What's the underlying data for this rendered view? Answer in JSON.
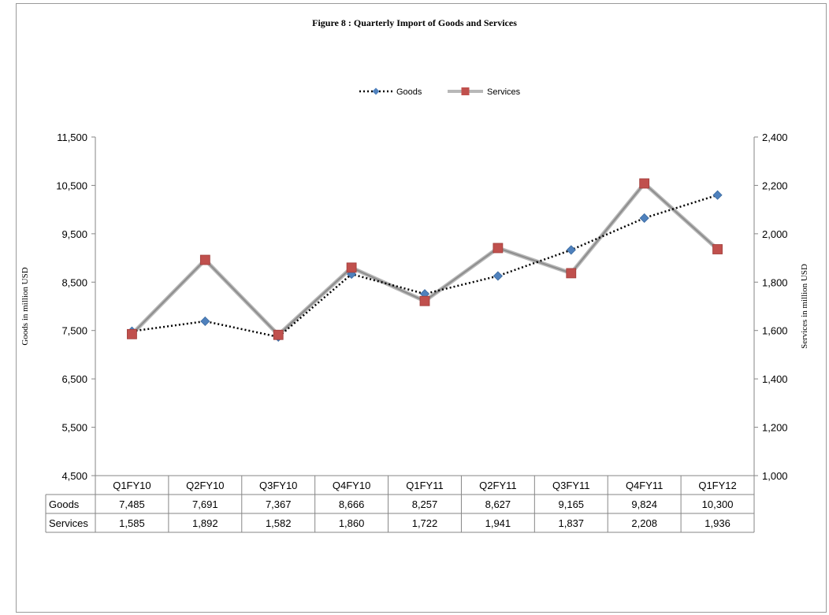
{
  "chart_data": {
    "type": "line",
    "title": "Figure  8 : Quarterly Import of Goods and Services",
    "categories": [
      "Q1FY10",
      "Q2FY10",
      "Q3FY10",
      "Q4FY10",
      "Q1FY11",
      "Q2FY11",
      "Q3FY11",
      "Q4FY11",
      "Q1FY12"
    ],
    "series": [
      {
        "name": "Goods",
        "axis": "left",
        "values": [
          7485,
          7691,
          7367,
          8666,
          8257,
          8627,
          9165,
          9824,
          10300
        ],
        "color": "#4f81bd",
        "marker": "diamond",
        "line": "dotted"
      },
      {
        "name": "Services",
        "axis": "right",
        "values": [
          1585,
          1892,
          1582,
          1860,
          1722,
          1941,
          1837,
          2208,
          1936
        ],
        "color": "#c0504d",
        "marker": "square",
        "line": "gray-gradient"
      }
    ],
    "y_left": {
      "label": "Goods in million USD",
      "min": 4500,
      "max": 11500,
      "ticks": [
        "4,500",
        "5,500",
        "6,500",
        "7,500",
        "8,500",
        "9,500",
        "10,500",
        "11,500"
      ]
    },
    "y_right": {
      "label": "Services in million  USD",
      "min": 1000,
      "max": 2400,
      "ticks": [
        "1,000",
        "1,200",
        "1,400",
        "1,600",
        "1,800",
        "2,000",
        "2,200",
        "2,400"
      ]
    },
    "legend_position": "top",
    "grid": false,
    "data_table": {
      "rows": [
        {
          "label": "Goods",
          "cells": [
            "7,485",
            "7,691",
            "7,367",
            "8,666",
            "8,257",
            "8,627",
            "9,165",
            "9,824",
            "10,300"
          ]
        },
        {
          "label": "Services",
          "cells": [
            "1,585",
            "1,892",
            "1,582",
            "1,860",
            "1,722",
            "1,941",
            "1,837",
            "2,208",
            "1,936"
          ]
        }
      ]
    }
  }
}
